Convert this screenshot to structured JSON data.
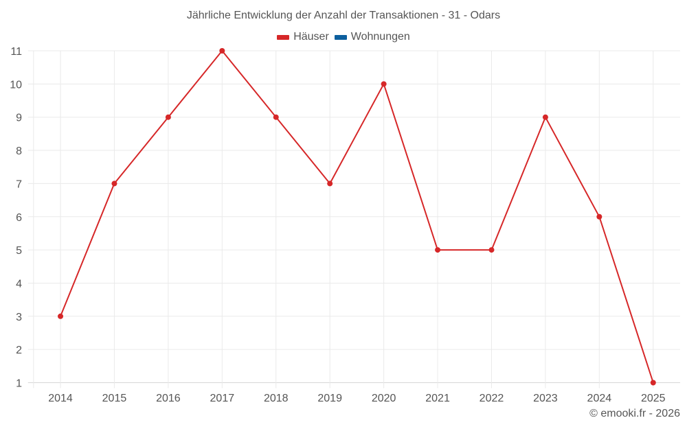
{
  "chart_data": {
    "type": "line",
    "title": "Jährliche Entwicklung der Anzahl der Transaktionen - 31 - Odars",
    "xlabel": "",
    "ylabel": "",
    "categories": [
      "2014",
      "2015",
      "2016",
      "2017",
      "2018",
      "2019",
      "2020",
      "2021",
      "2022",
      "2023",
      "2024",
      "2025"
    ],
    "series": [
      {
        "name": "Häuser",
        "color": "#d62728",
        "values": [
          3,
          7,
          9,
          11,
          9,
          7,
          10,
          5,
          5,
          9,
          6,
          1
        ]
      },
      {
        "name": "Wohnungen",
        "color": "#1f6aa5",
        "values": []
      }
    ],
    "ylim": [
      1,
      11
    ],
    "yticks": [
      1,
      2,
      3,
      4,
      5,
      6,
      7,
      8,
      9,
      10,
      11
    ],
    "grid": true,
    "legend_position": "top"
  },
  "legend": [
    {
      "label": "Häuser",
      "color": "#d62728"
    },
    {
      "label": "Wohnungen",
      "color": "#0d5f9e"
    }
  ],
  "footer": "© emooki.fr - 2026"
}
